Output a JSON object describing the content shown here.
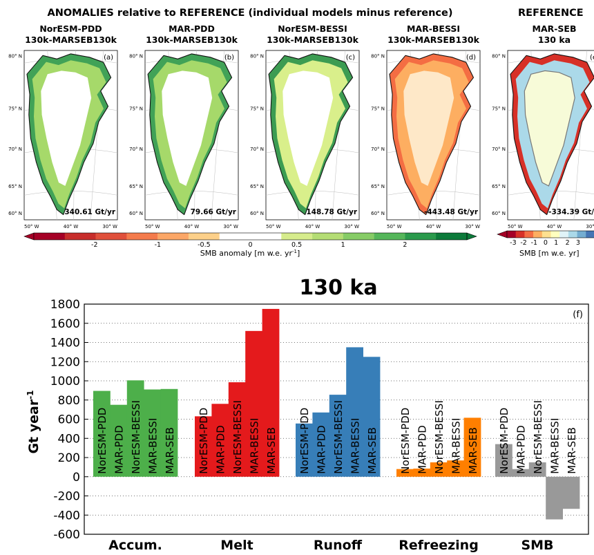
{
  "header": {
    "anomalies_title": "ANOMALIES relative to REFERENCE (individual models minus reference)",
    "reference_title": "REFERENCE"
  },
  "maps": [
    {
      "title1": "NorESM-PDD",
      "title2": "130k-MARSEB130k",
      "letter": "(a)",
      "total": "340.61 Gt/yr",
      "style": "green"
    },
    {
      "title1": "MAR-PDD",
      "title2": "130k-MARSEB130k",
      "letter": "(b)",
      "total": "79.66 Gt/yr",
      "style": "green"
    },
    {
      "title1": "NorESM-BESSI",
      "title2": "130k-MARSEB130k",
      "letter": "(c)",
      "total": "148.78 Gt/yr",
      "style": "mixed"
    },
    {
      "title1": "MAR-BESSI",
      "title2": "130k-MARSEB130k",
      "letter": "(d)",
      "total": "-443.48 Gt/yr",
      "style": "orange"
    },
    {
      "title1": "MAR-SEB",
      "title2": "130 ka",
      "letter": "(e",
      "total": "-334.39 Gt/y",
      "style": "reference"
    }
  ],
  "map_axes": {
    "lat_labels": [
      "80° N",
      "75° N",
      "70° N",
      "65° N",
      "60° N"
    ],
    "lon_labels": [
      "50° W",
      "40° W",
      "30° W"
    ]
  },
  "colorbar_anomaly": {
    "ticks": [
      "-2",
      "-1",
      "-0.5",
      "0",
      "0.5",
      "1",
      "2"
    ],
    "label": "SMB anomaly [m w.e. yr",
    "label_sup": "-1",
    "label_end": "]",
    "colors": [
      "#a50026",
      "#c72d2b",
      "#e0503b",
      "#f47b4c",
      "#fca767",
      "#fdd089",
      "#ffffff",
      "#ffffff",
      "#d6ec8c",
      "#b4dd74",
      "#86cc66",
      "#55b65a",
      "#2a9a4c",
      "#0c7a3a"
    ]
  },
  "colorbar_reference": {
    "ticks": [
      "-3",
      "-2",
      "-1",
      "0",
      "1",
      "2",
      "3"
    ],
    "label": "SMB [m w.e. yr",
    "label_end": "]",
    "colors": [
      "#a50026",
      "#d73027",
      "#f46d43",
      "#fdae61",
      "#fee090",
      "#ffffbf",
      "#e0f3f8",
      "#abd9e9",
      "#74add1",
      "#4575b4"
    ]
  },
  "chart_data": {
    "type": "bar",
    "title": "130 ka",
    "panel_label": "(f)",
    "ylabel": "Gt year",
    "ylabel_sup": "-1",
    "ylim": [
      -600,
      1800
    ],
    "yticks": [
      -600,
      -400,
      -200,
      0,
      200,
      400,
      600,
      800,
      1000,
      1200,
      1400,
      1600,
      1800
    ],
    "grid": "horizontal dotted",
    "models": [
      "NorESM-PDD",
      "MAR-PDD",
      "NorESM-BESSI",
      "MAR-BESSI",
      "MAR-SEB"
    ],
    "groups": [
      {
        "name": "Accum.",
        "color": "#4daf4a",
        "values": [
          895,
          750,
          1005,
          910,
          915
        ]
      },
      {
        "name": "Melt",
        "color": "#e41a1c",
        "values": [
          630,
          760,
          985,
          1520,
          1750
        ]
      },
      {
        "name": "Runoff",
        "color": "#377eb8",
        "values": [
          555,
          670,
          855,
          1350,
          1250
        ]
      },
      {
        "name": "Refreezing",
        "color": "#ff7f00",
        "values": [
          80,
          85,
          150,
          170,
          615
        ]
      },
      {
        "name": "SMB",
        "color": "#999999",
        "values": [
          340,
          80,
          150,
          -445,
          -335
        ]
      }
    ]
  }
}
